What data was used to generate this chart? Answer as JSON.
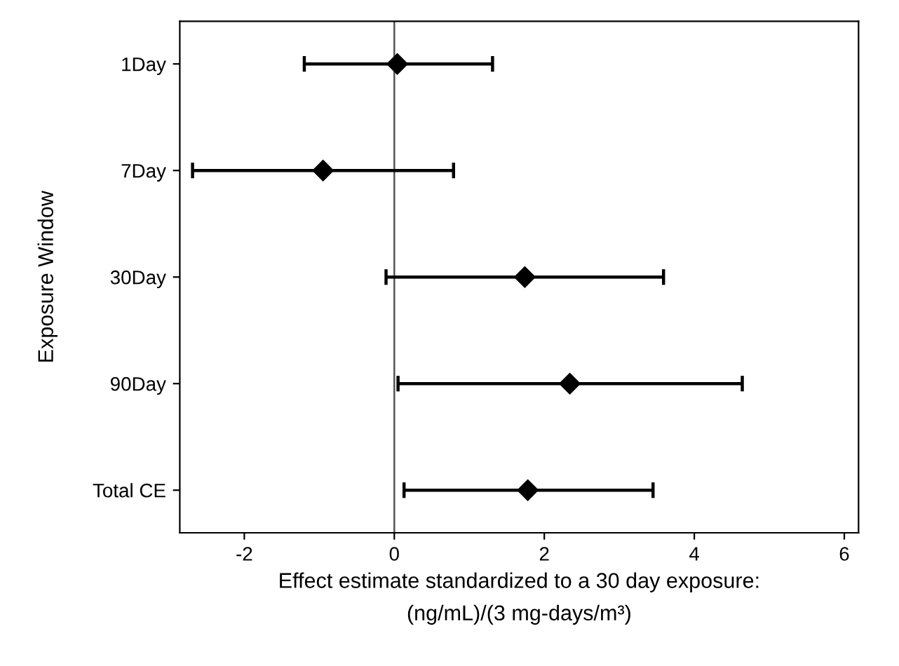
{
  "chart_data": {
    "type": "scatter",
    "orientation": "horizontal",
    "categories": [
      "1Day",
      "7Day",
      "30Day",
      "90Day",
      "Total CE"
    ],
    "series": [
      {
        "color": "#000000",
        "values": [
          0.04,
          -0.95,
          1.74,
          2.34,
          1.78
        ],
        "errors": [
          [
            -1.2,
            1.31
          ],
          [
            -2.69,
            0.79
          ],
          [
            -0.11,
            3.59
          ],
          [
            0.05,
            4.64
          ],
          [
            0.13,
            3.45
          ]
        ]
      }
    ],
    "xlabel": "Effect estimate standardized to a 30 day exposure:\n(ng/mL)/(3 mg-days/m³)",
    "ylabel": "Exposure Window",
    "xlim": [
      -2.86,
      6.19
    ],
    "xticks": [
      -2,
      0,
      2,
      4,
      6
    ],
    "ref_lines": [
      {
        "axis": "x",
        "value": 0,
        "color": "#555555"
      }
    ],
    "marker": "diamond",
    "grid": false,
    "legend": false
  }
}
